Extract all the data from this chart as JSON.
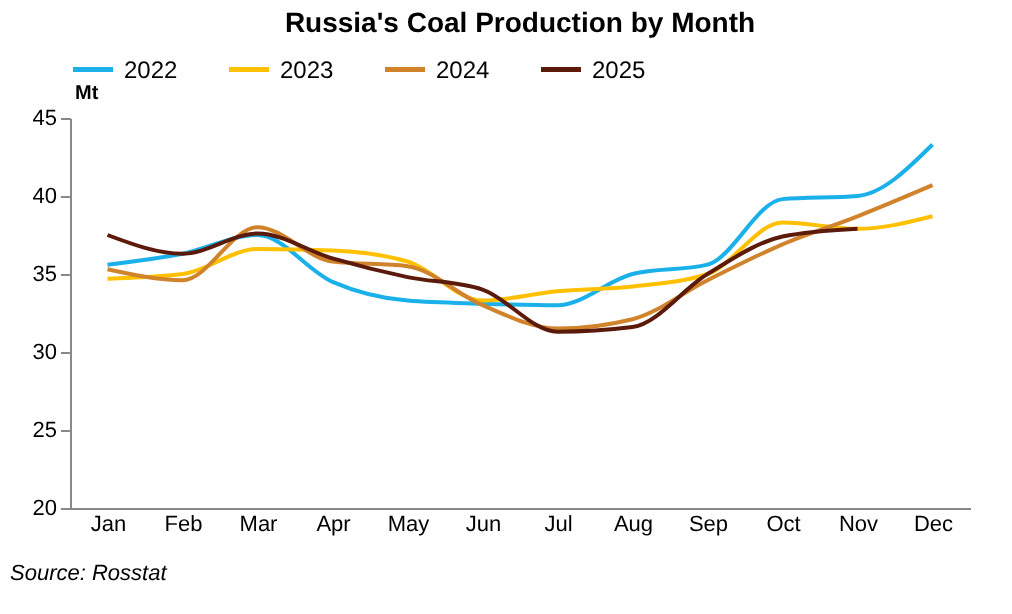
{
  "chart_data": {
    "type": "line",
    "title": "Russia's Coal Production by Month",
    "ylabel": "Mt",
    "categories": [
      "Jan",
      "Feb",
      "Mar",
      "Apr",
      "May",
      "Jun",
      "Jul",
      "Aug",
      "Sep",
      "Oct",
      "Nov",
      "Dec"
    ],
    "series": [
      {
        "name": "2022",
        "color": "#1ab0ea",
        "values": [
          35.6,
          36.3,
          37.5,
          34.5,
          33.3,
          33.1,
          33.0,
          35.0,
          35.6,
          39.8,
          40.0,
          43.3
        ]
      },
      {
        "name": "2023",
        "color": "#ffc000",
        "values": [
          34.7,
          35.0,
          36.6,
          36.5,
          35.8,
          33.3,
          33.9,
          34.2,
          35.0,
          38.3,
          37.9,
          38.7
        ]
      },
      {
        "name": "2024",
        "color": "#d0832a",
        "values": [
          35.3,
          34.6,
          38.0,
          35.8,
          35.5,
          33.0,
          31.5,
          32.1,
          34.6,
          36.9,
          38.7,
          40.7
        ]
      },
      {
        "name": "2025",
        "color": "#5c1a0b",
        "values": [
          37.5,
          36.3,
          37.6,
          36.0,
          34.8,
          34.0,
          31.3,
          31.6,
          35.0,
          37.4,
          37.9,
          null
        ]
      }
    ],
    "ylim": [
      20,
      45
    ],
    "yticks": [
      20,
      25,
      30,
      35,
      40,
      45
    ],
    "grid": false,
    "legend": "top",
    "annotations": [
      "Source: Rosstat"
    ]
  }
}
